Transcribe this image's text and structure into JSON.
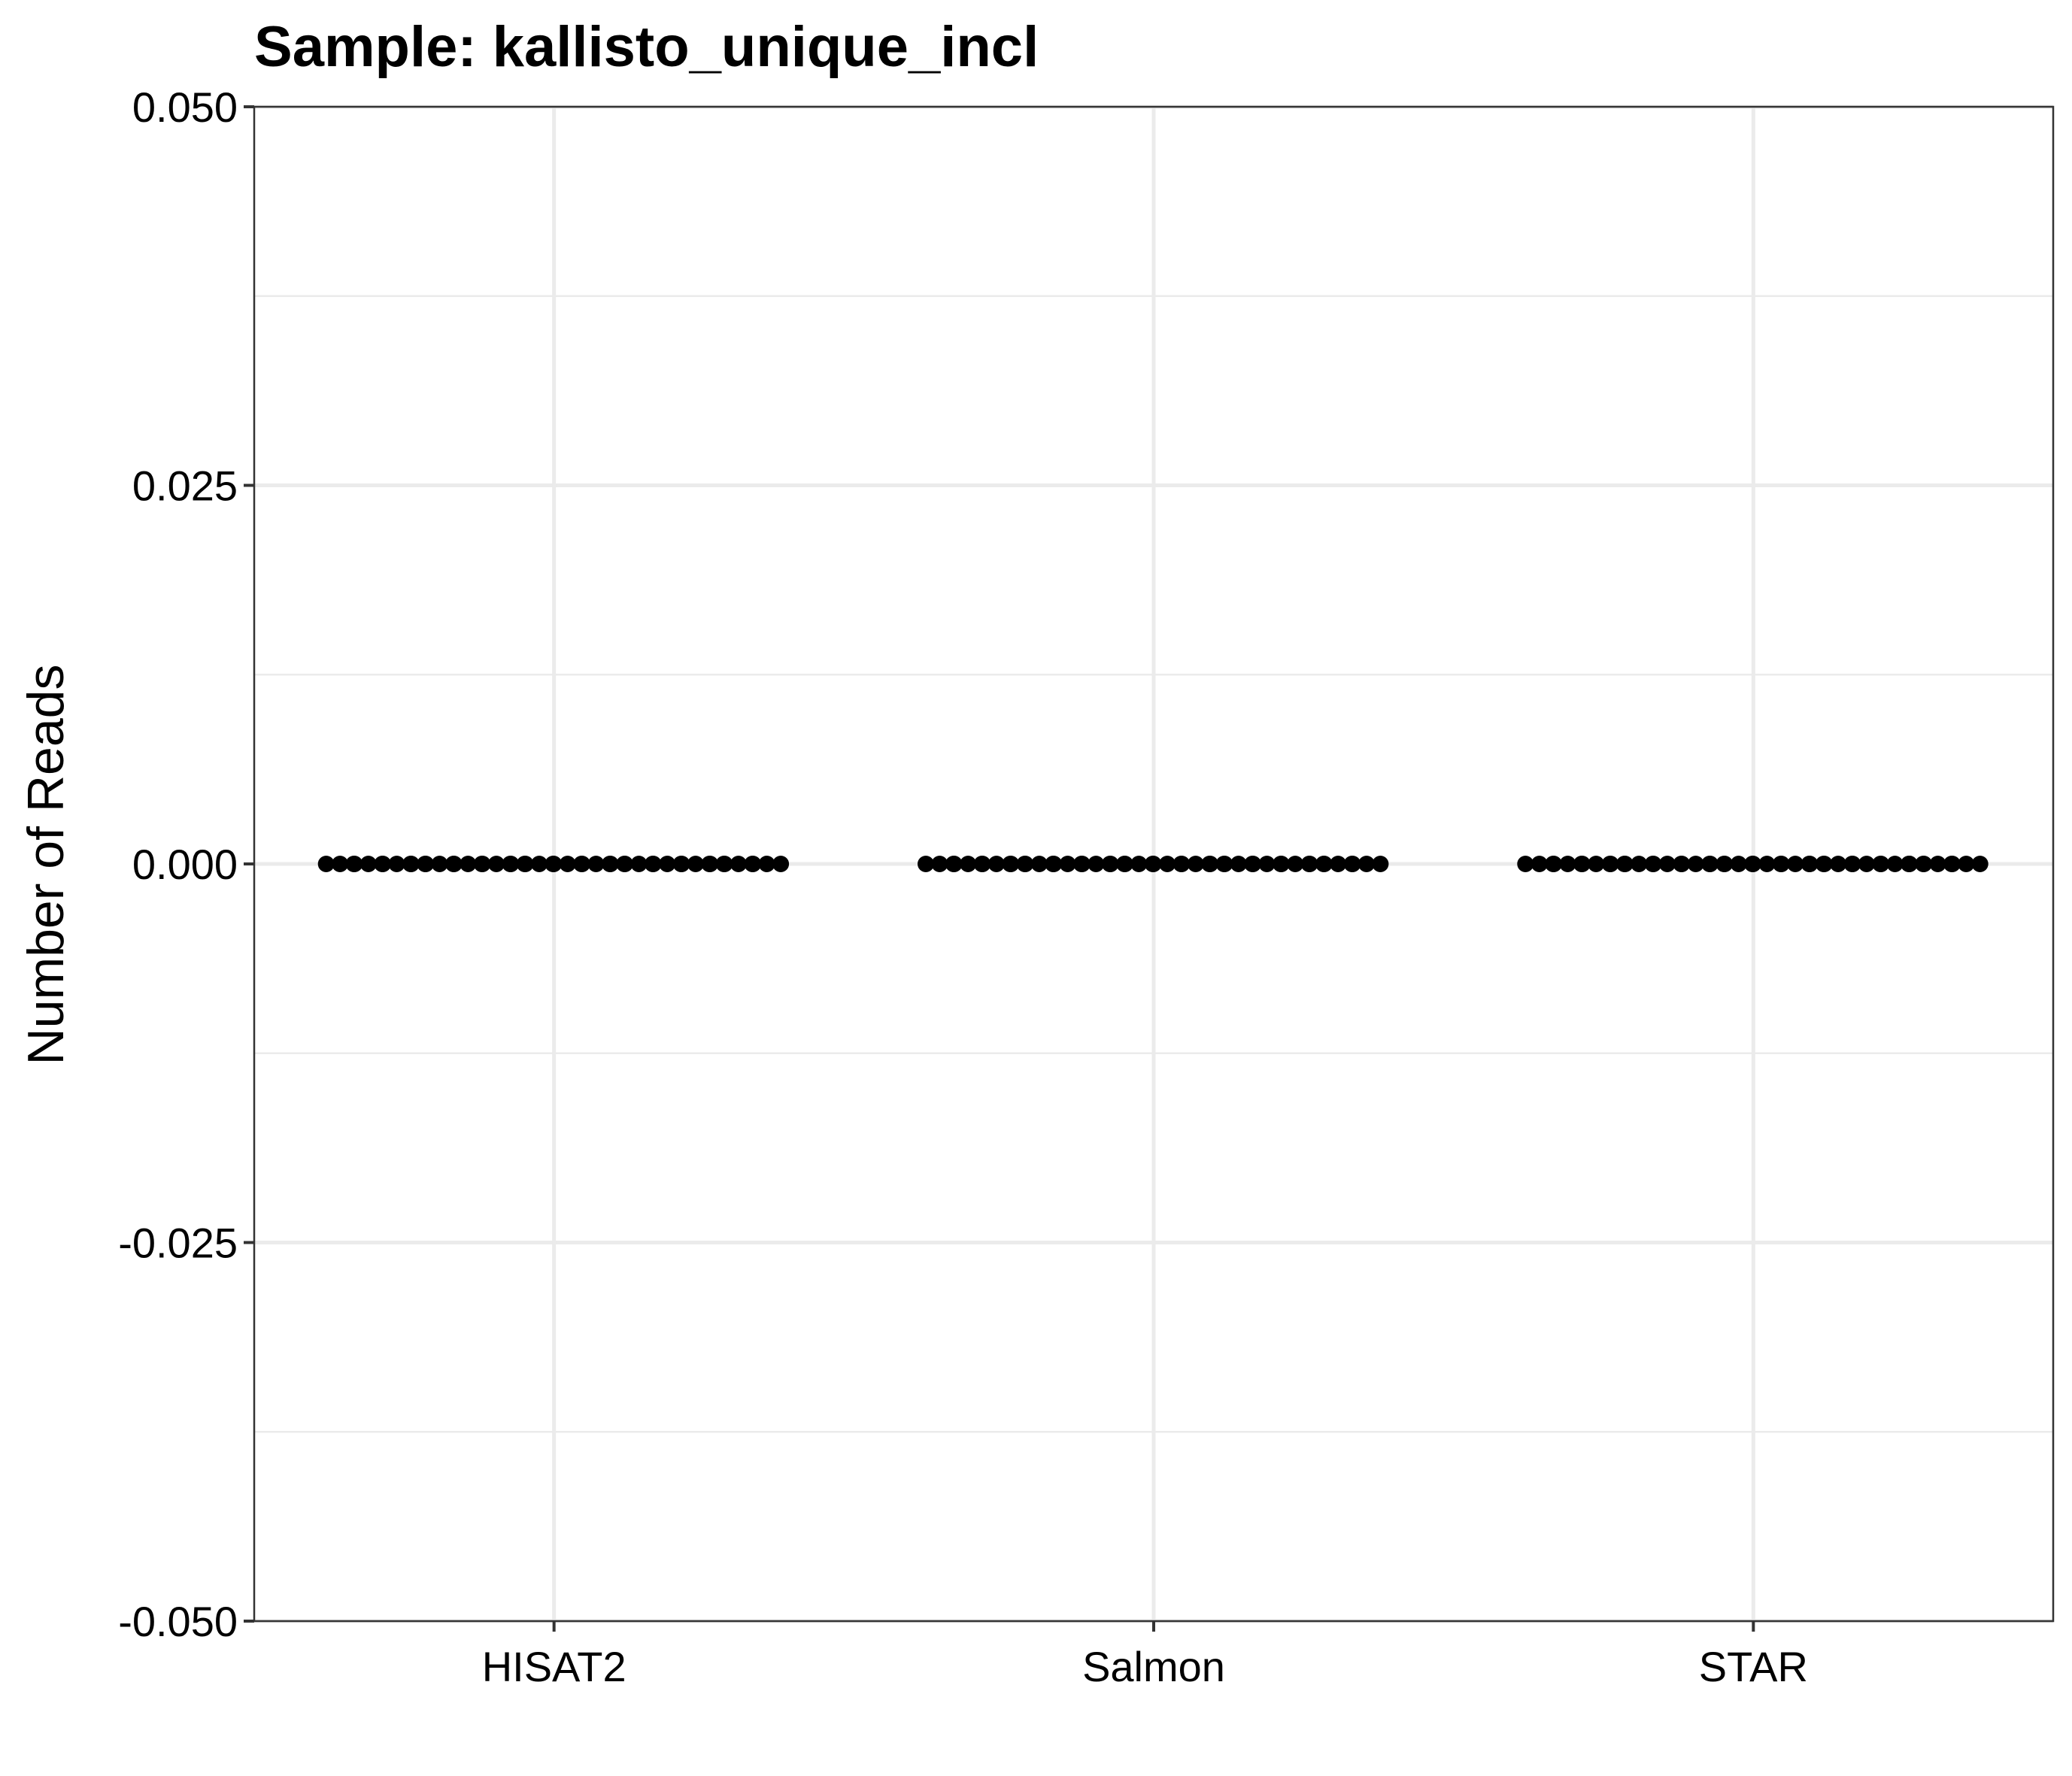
{
  "chart_data": {
    "type": "scatter",
    "title": "Sample: kallisto_unique_incl",
    "xlabel": "",
    "ylabel": "Number of Reads",
    "categories": [
      "HISAT2",
      "Salmon",
      "STAR"
    ],
    "ylim": [
      -0.05,
      0.05
    ],
    "yticks": [
      "-0.050",
      "-0.025",
      "0.000",
      "0.025",
      "0.050"
    ],
    "grid": true,
    "legend": "none",
    "point_color": "#000000",
    "series": [
      {
        "category": "HISAT2",
        "values": [
          0,
          0,
          0,
          0,
          0,
          0,
          0,
          0,
          0,
          0,
          0,
          0,
          0,
          0,
          0,
          0,
          0,
          0,
          0,
          0,
          0,
          0,
          0,
          0,
          0,
          0,
          0,
          0,
          0,
          0,
          0,
          0,
          0,
          0,
          0,
          0,
          0,
          0,
          0,
          0,
          0,
          0,
          0,
          0,
          0,
          0,
          0,
          0,
          0,
          0
        ]
      },
      {
        "category": "Salmon",
        "values": [
          0,
          0,
          0,
          0,
          0,
          0,
          0,
          0,
          0,
          0,
          0,
          0,
          0,
          0,
          0,
          0,
          0,
          0,
          0,
          0,
          0,
          0,
          0,
          0,
          0,
          0,
          0,
          0,
          0,
          0,
          0,
          0,
          0,
          0,
          0,
          0,
          0,
          0,
          0,
          0,
          0,
          0,
          0,
          0,
          0,
          0,
          0,
          0,
          0,
          0
        ]
      },
      {
        "category": "STAR",
        "values": [
          0,
          0,
          0,
          0,
          0,
          0,
          0,
          0,
          0,
          0,
          0,
          0,
          0,
          0,
          0,
          0,
          0,
          0,
          0,
          0,
          0,
          0,
          0,
          0,
          0,
          0,
          0,
          0,
          0,
          0,
          0,
          0,
          0,
          0,
          0,
          0,
          0,
          0,
          0,
          0,
          0,
          0,
          0,
          0,
          0,
          0,
          0,
          0,
          0,
          0
        ]
      }
    ]
  }
}
